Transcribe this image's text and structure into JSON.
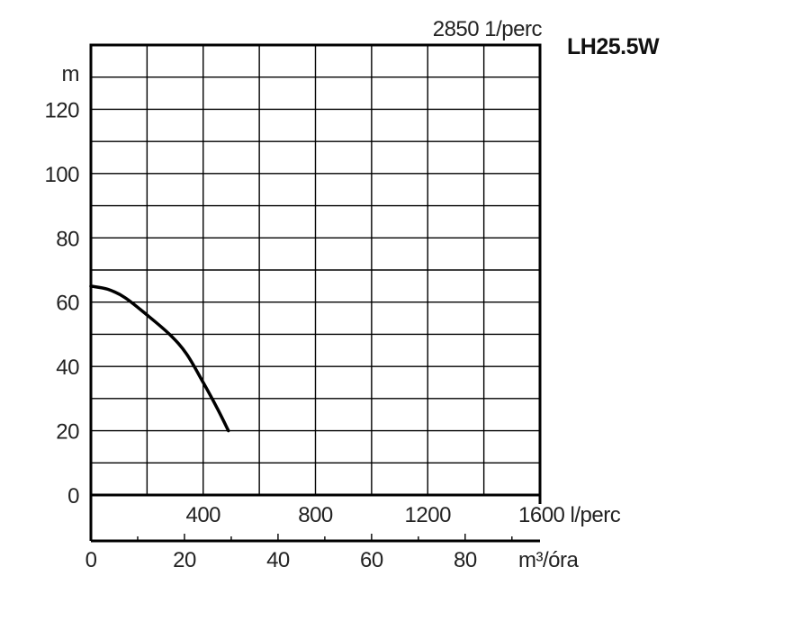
{
  "chart_data": {
    "type": "line",
    "title": "LH25.5W",
    "speed_label": "2850 1/perc",
    "ylabel": "m",
    "ylim": [
      0,
      140
    ],
    "yticks": [
      "0",
      "20",
      "40",
      "60",
      "80",
      "100",
      "120"
    ],
    "x_primary": {
      "unit": "l/perc",
      "lim": [
        0,
        1600
      ],
      "tick_values": [
        400,
        800,
        1200,
        1600
      ],
      "tick_labels": [
        "400",
        "800",
        "1200",
        "1600 l/perc"
      ]
    },
    "x_secondary": {
      "unit": "m³/óra",
      "lim": [
        0,
        96
      ],
      "tick_values": [
        0,
        20,
        40,
        60,
        80
      ],
      "tick_labels": [
        "0",
        "20",
        "40",
        "60",
        "80"
      ],
      "unit_label": "m³/óra"
    },
    "grid": true,
    "series": [
      {
        "x": [
          0,
          60,
          120,
          200,
          280,
          340,
          400,
          450,
          490
        ],
        "y": [
          65,
          64,
          61.5,
          56,
          50,
          44,
          35,
          27,
          20
        ]
      }
    ]
  }
}
